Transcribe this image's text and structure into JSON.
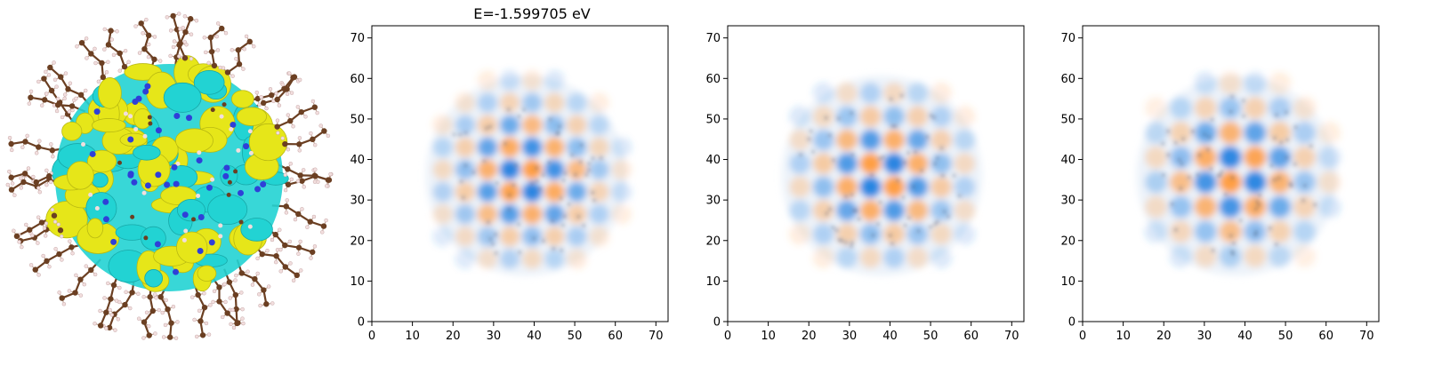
{
  "figure": {
    "title": "E=-1.599705 eV",
    "molecule_image": "nanocluster-isosurface",
    "colors": {
      "isosurface_positive": "#e6e619",
      "isosurface_negative": "#22d3d3",
      "carbon_atom": "#6b3f22",
      "hydrogen_atom": "#f2dede",
      "nitrogen_atom": "#2f3fd8",
      "density_positive": "#1f7fe0",
      "density_negative": "#ff9a3c"
    }
  },
  "chart_data": [
    {
      "type": "heatmap",
      "title": "E=-1.599705 eV",
      "xlim": [
        0,
        73
      ],
      "ylim": [
        0,
        73
      ],
      "xticks": [
        "0",
        "10",
        "20",
        "30",
        "40",
        "50",
        "60",
        "70"
      ],
      "yticks": [
        "0",
        "10",
        "20",
        "30",
        "40",
        "50",
        "60",
        "70"
      ],
      "extent_center": [
        38,
        36
      ],
      "extent_radius": 26
    },
    {
      "type": "heatmap",
      "title": "",
      "xlim": [
        0,
        73
      ],
      "ylim": [
        0,
        73
      ],
      "xticks": [
        "0",
        "10",
        "20",
        "30",
        "40",
        "50",
        "60",
        "70"
      ],
      "yticks": [
        "0",
        "10",
        "20",
        "30",
        "40",
        "50",
        "60",
        "70"
      ],
      "extent_center": [
        38,
        36
      ],
      "extent_radius": 26
    },
    {
      "type": "heatmap",
      "title": "",
      "xlim": [
        0,
        73
      ],
      "ylim": [
        0,
        73
      ],
      "xticks": [
        "0",
        "10",
        "20",
        "30",
        "40",
        "50",
        "60",
        "70"
      ],
      "yticks": [
        "0",
        "10",
        "20",
        "30",
        "40",
        "50",
        "60",
        "70"
      ],
      "extent_center": [
        38,
        36
      ],
      "extent_radius": 26
    }
  ]
}
